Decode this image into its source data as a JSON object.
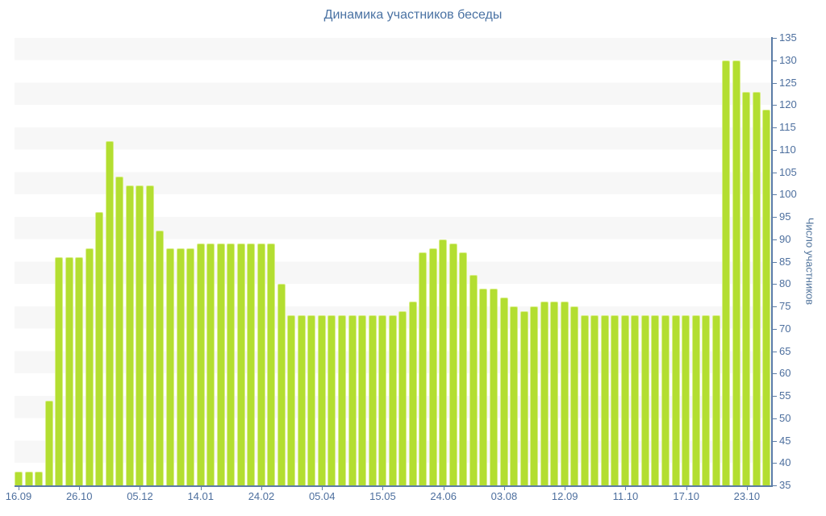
{
  "chart_data": {
    "type": "bar",
    "title": "Динамика участников беседы",
    "ylabel": "Число участников",
    "xlabel": "",
    "ylim": [
      35,
      135
    ],
    "y_tick_step": 5,
    "y_axis_position": "right",
    "grid": "striped-horizontal-bands",
    "legend": "none",
    "y_tick_labels": [
      "135",
      "130",
      "125",
      "120",
      "115",
      "110",
      "105",
      "100",
      "95",
      "90",
      "85",
      "80",
      "75",
      "70",
      "65",
      "60",
      "55",
      "50",
      "45",
      "40",
      "35"
    ],
    "x_tick_labels": [
      "16.09",
      "26.10",
      "05.12",
      "14.01",
      "24.02",
      "05.04",
      "15.05",
      "24.06",
      "03.08",
      "12.09",
      "11.10",
      "17.10",
      "23.10"
    ],
    "x_label_every_n_bars": 6,
    "values": [
      38,
      38,
      38,
      54,
      86,
      86,
      86,
      88,
      96,
      112,
      104,
      102,
      102,
      102,
      92,
      88,
      88,
      88,
      89,
      89,
      89,
      89,
      89,
      89,
      89,
      89,
      80,
      73,
      73,
      73,
      73,
      73,
      73,
      73,
      73,
      73,
      73,
      73,
      74,
      76,
      87,
      88,
      90,
      89,
      87,
      82,
      79,
      79,
      77,
      75,
      74,
      75,
      76,
      76,
      76,
      75,
      73,
      73,
      73,
      73,
      73,
      73,
      73,
      73,
      73,
      73,
      73,
      73,
      73,
      73,
      130,
      130,
      123,
      123,
      119
    ]
  },
  "colors": {
    "bar_fill": "#b3de31",
    "bar_border": "#d9ee8a",
    "title_text": "#4a72a3",
    "axis_text": "#4d6f9e",
    "axis_line": "#5b7ca6",
    "stripe": "#f7f7f7",
    "background": "#ffffff"
  }
}
